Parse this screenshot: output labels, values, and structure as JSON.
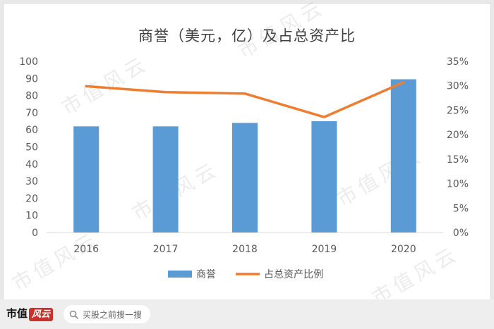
{
  "watermark_text": "市值风云",
  "footer": {
    "brand_text": "市值",
    "brand_mark": "风云",
    "search_placeholder": "买股之前搜一搜",
    "search_icon": "search-icon"
  },
  "colors": {
    "bar": "#5b9bd5",
    "line": "#ed7d31",
    "axis_text": "#595959",
    "grid": "#d9d9d9"
  },
  "chart_data": {
    "type": "bar",
    "title": "商誉（美元，亿）及占总资产比",
    "categories": [
      "2016",
      "2017",
      "2018",
      "2019",
      "2020"
    ],
    "series": [
      {
        "name": "商誉",
        "type": "bar",
        "axis": "left",
        "values": [
          62,
          62,
          64,
          65,
          89.5
        ]
      },
      {
        "name": "占总资产比例",
        "type": "line",
        "axis": "right",
        "values": [
          0.299,
          0.287,
          0.284,
          0.236,
          0.307
        ]
      }
    ],
    "y_left": {
      "ylim": [
        0,
        100
      ],
      "ticks": [
        "0",
        "10",
        "20",
        "30",
        "40",
        "50",
        "60",
        "70",
        "80",
        "90",
        "100"
      ]
    },
    "y_right": {
      "ylim": [
        0,
        0.35
      ],
      "ticks": [
        "0%",
        "5%",
        "10%",
        "15%",
        "20%",
        "25%",
        "30%",
        "35%"
      ]
    },
    "grid": false,
    "legend_position": "bottom"
  }
}
